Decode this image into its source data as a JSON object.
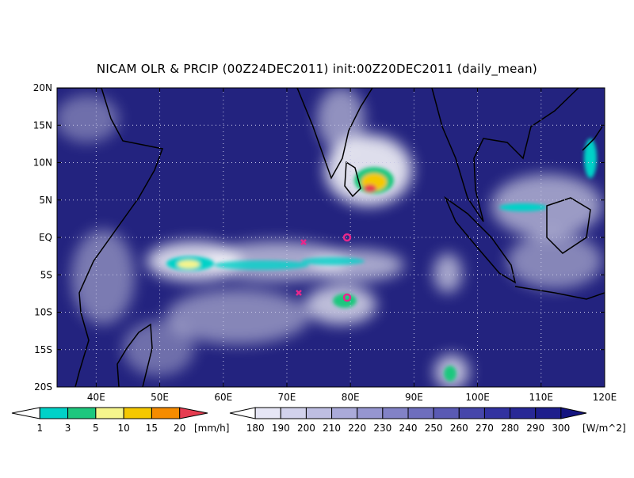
{
  "title": "NICAM OLR & PRCIP (00Z24DEC2011) init:00Z20DEC2011 (daily_mean)",
  "lat_labels": [
    "20N",
    "15N",
    "10N",
    "5N",
    "EQ",
    "5S",
    "10S",
    "15S",
    "20S"
  ],
  "lon_labels": [
    "40E",
    "50E",
    "60E",
    "70E",
    "80E",
    "90E",
    "100E",
    "110E",
    "120E"
  ],
  "precip_colorbar": {
    "labels": [
      "1",
      "3",
      "5",
      "10",
      "15",
      "20"
    ],
    "unit": "[mm/h]",
    "colors": [
      "#ffffff",
      "#00d2c8",
      "#1ec77e",
      "#f5f58c",
      "#f5c800",
      "#f58c00",
      "#e63c50"
    ]
  },
  "olr_colorbar": {
    "labels": [
      "180",
      "190",
      "200",
      "210",
      "220",
      "230",
      "240",
      "250",
      "260",
      "270",
      "280",
      "290",
      "300"
    ],
    "unit": "[W/m^2]",
    "colors": [
      "#ffffff",
      "#e6e6f5",
      "#d2d2ec",
      "#bebee2",
      "#aaaad9",
      "#9696d0",
      "#8282c6",
      "#6e6ebd",
      "#5a5ab4",
      "#4646aa",
      "#3232a0",
      "#282896",
      "#1e1e8c",
      "#141480"
    ]
  }
}
